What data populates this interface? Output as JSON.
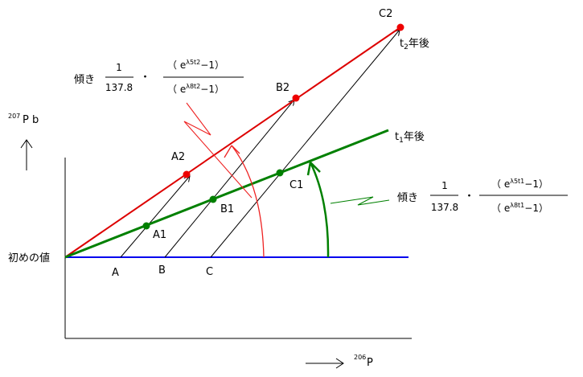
{
  "axes": {
    "y_label_sup": "207",
    "y_label": "P b",
    "x_label_sup": "206",
    "x_label": "P",
    "initial_value_label": "初めの値"
  },
  "points": {
    "A": "A",
    "B": "B",
    "C": "C",
    "A1": "A1",
    "B1": "B1",
    "C1": "C1",
    "A2": "A2",
    "B2": "B2",
    "C2": "C2"
  },
  "lines": {
    "t1_prefix": "t",
    "t1_sub": "1",
    "t1_suffix": "年後",
    "t2_prefix": "t",
    "t2_sub": "2",
    "t2_suffix": "年後"
  },
  "slope_t2": {
    "label": "傾き",
    "numerator_1": "1",
    "denominator_1": "137.8",
    "dot": "・",
    "numerator_2_open": "（ e",
    "numerator_2_sup": "λ5t2",
    "numerator_2_close": "−1）",
    "denominator_2_open": "（ e",
    "denominator_2_sup": "λ8t2",
    "denominator_2_close": "−1）"
  },
  "slope_t1": {
    "label": "傾き",
    "numerator_1": "1",
    "denominator_1": "137.8",
    "dot": "・",
    "numerator_2_open": "（ e",
    "numerator_2_sup": "λ5t1",
    "numerator_2_close": "−1）",
    "denominator_2_open": "（ e",
    "denominator_2_sup": "λ8t1",
    "denominator_2_close": "−1）"
  },
  "colors": {
    "initial_line": "#0000ee",
    "t1_line": "#008000",
    "t2_line": "#dd0000",
    "isochron_arrow_red": "#ee2222",
    "isochron_arrow_green": "#008000",
    "axis": "#000000"
  }
}
